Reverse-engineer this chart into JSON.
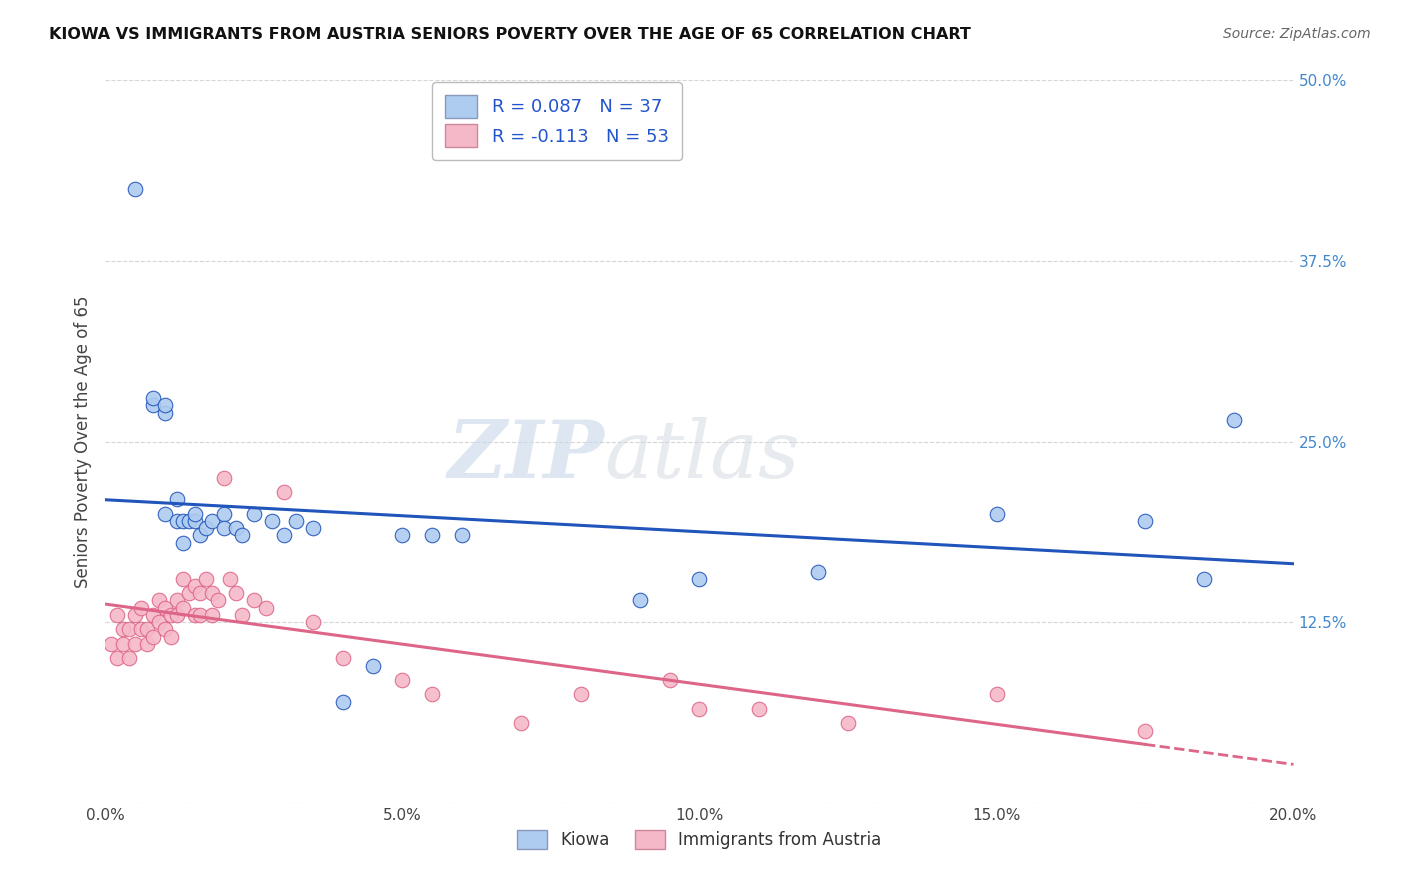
{
  "title": "KIOWA VS IMMIGRANTS FROM AUSTRIA SENIORS POVERTY OVER THE AGE OF 65 CORRELATION CHART",
  "source": "Source: ZipAtlas.com",
  "ylabel": "Seniors Poverty Over the Age of 65",
  "xlim": [
    0.0,
    0.2
  ],
  "ylim": [
    0.0,
    0.5
  ],
  "xticks": [
    0.0,
    0.05,
    0.1,
    0.15,
    0.2
  ],
  "yticks": [
    0.0,
    0.125,
    0.25,
    0.375,
    0.5
  ],
  "xtick_labels": [
    "0.0%",
    "5.0%",
    "10.0%",
    "15.0%",
    "20.0%"
  ],
  "ytick_labels": [
    "",
    "12.5%",
    "25.0%",
    "37.5%",
    "50.0%"
  ],
  "legend_r1": "R = 0.087   N = 37",
  "legend_r2": "R = -0.113   N = 53",
  "color_kiowa": "#aecbf0",
  "color_austria": "#f5b8c8",
  "line_color_kiowa": "#2255bb",
  "line_color_austria": "#dd6688",
  "watermark_zip": "ZIP",
  "watermark_atlas": "atlas",
  "kiowa_x": [
    0.005,
    0.008,
    0.008,
    0.01,
    0.01,
    0.01,
    0.012,
    0.012,
    0.013,
    0.013,
    0.014,
    0.015,
    0.015,
    0.016,
    0.017,
    0.018,
    0.02,
    0.02,
    0.022,
    0.023,
    0.025,
    0.028,
    0.03,
    0.032,
    0.035,
    0.04,
    0.045,
    0.05,
    0.055,
    0.06,
    0.09,
    0.1,
    0.12,
    0.15,
    0.175,
    0.185,
    0.19
  ],
  "kiowa_y": [
    0.425,
    0.275,
    0.28,
    0.27,
    0.275,
    0.2,
    0.195,
    0.21,
    0.195,
    0.18,
    0.195,
    0.195,
    0.2,
    0.185,
    0.19,
    0.195,
    0.2,
    0.19,
    0.19,
    0.185,
    0.2,
    0.195,
    0.185,
    0.195,
    0.19,
    0.07,
    0.095,
    0.185,
    0.185,
    0.185,
    0.14,
    0.155,
    0.16,
    0.2,
    0.195,
    0.155,
    0.265
  ],
  "austria_x": [
    0.001,
    0.002,
    0.002,
    0.003,
    0.003,
    0.004,
    0.004,
    0.005,
    0.005,
    0.006,
    0.006,
    0.007,
    0.007,
    0.008,
    0.008,
    0.009,
    0.009,
    0.01,
    0.01,
    0.011,
    0.011,
    0.012,
    0.012,
    0.013,
    0.013,
    0.014,
    0.015,
    0.015,
    0.016,
    0.016,
    0.017,
    0.018,
    0.018,
    0.019,
    0.02,
    0.021,
    0.022,
    0.023,
    0.025,
    0.027,
    0.03,
    0.035,
    0.04,
    0.05,
    0.055,
    0.07,
    0.08,
    0.095,
    0.1,
    0.11,
    0.125,
    0.15,
    0.175
  ],
  "austria_y": [
    0.11,
    0.13,
    0.1,
    0.12,
    0.11,
    0.12,
    0.1,
    0.13,
    0.11,
    0.135,
    0.12,
    0.12,
    0.11,
    0.13,
    0.115,
    0.14,
    0.125,
    0.135,
    0.12,
    0.13,
    0.115,
    0.14,
    0.13,
    0.155,
    0.135,
    0.145,
    0.15,
    0.13,
    0.145,
    0.13,
    0.155,
    0.145,
    0.13,
    0.14,
    0.225,
    0.155,
    0.145,
    0.13,
    0.14,
    0.135,
    0.215,
    0.125,
    0.1,
    0.085,
    0.075,
    0.055,
    0.075,
    0.085,
    0.065,
    0.065,
    0.055,
    0.075,
    0.05
  ]
}
